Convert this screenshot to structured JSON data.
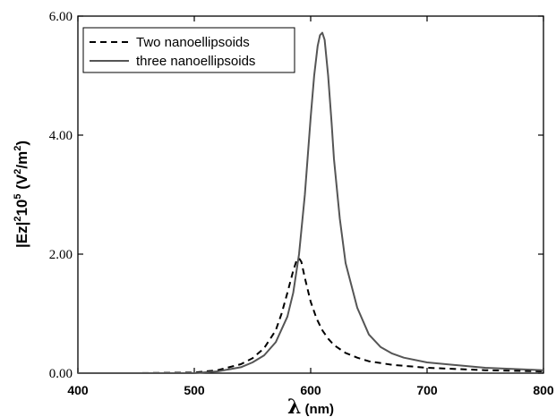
{
  "chart_data": {
    "type": "line",
    "title": "",
    "xlabel_symbol": "λ",
    "xlabel_unit": "(nm)",
    "ylabel_parts": [
      "|Ez|",
      "2",
      "10",
      "5",
      " (V",
      "2",
      "/m",
      "2",
      ")"
    ],
    "xlim": [
      400,
      800
    ],
    "ylim": [
      0,
      6
    ],
    "x_ticks": [
      "400",
      "500",
      "600",
      "700",
      "800"
    ],
    "y_ticks": [
      "0.00",
      "2.00",
      "4.00",
      "6.00"
    ],
    "grid": false,
    "legend_position": "top-left",
    "series": [
      {
        "name": "Two nanoellipsoids",
        "style": "dashed",
        "color": "#000000",
        "x": [
          400,
          450,
          500,
          520,
          540,
          550,
          560,
          570,
          575,
          580,
          585,
          588,
          590,
          592,
          595,
          600,
          605,
          610,
          615,
          620,
          630,
          640,
          650,
          670,
          700,
          750,
          800
        ],
        "y": [
          0.0,
          0.0,
          0.01,
          0.05,
          0.15,
          0.25,
          0.42,
          0.72,
          1.0,
          1.35,
          1.72,
          1.9,
          1.93,
          1.87,
          1.6,
          1.2,
          0.92,
          0.72,
          0.58,
          0.47,
          0.34,
          0.26,
          0.2,
          0.14,
          0.09,
          0.05,
          0.03
        ]
      },
      {
        "name": "three nanoellipsoids",
        "style": "solid",
        "color": "#555555",
        "x": [
          400,
          450,
          500,
          520,
          540,
          550,
          560,
          570,
          580,
          585,
          590,
          595,
          600,
          603,
          606,
          608,
          610,
          612,
          615,
          618,
          620,
          625,
          630,
          640,
          650,
          660,
          670,
          680,
          700,
          750,
          800
        ],
        "y": [
          0.0,
          0.0,
          0.0,
          0.03,
          0.1,
          0.18,
          0.3,
          0.52,
          0.95,
          1.35,
          2.0,
          3.0,
          4.3,
          5.0,
          5.5,
          5.68,
          5.72,
          5.6,
          5.0,
          4.2,
          3.6,
          2.6,
          1.85,
          1.1,
          0.65,
          0.44,
          0.33,
          0.26,
          0.18,
          0.09,
          0.05
        ]
      }
    ]
  }
}
